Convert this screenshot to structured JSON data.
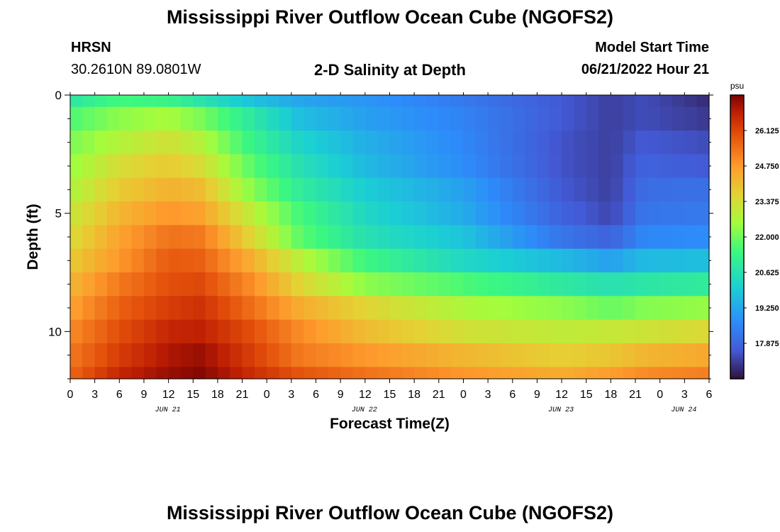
{
  "header": {
    "title": "Mississippi River Outflow Ocean Cube (NGOFS2)",
    "station": "HRSN",
    "coords": "30.2610N  89.0801W",
    "subtitle": "2-D Salinity at Depth",
    "model_start_label": "Model Start Time",
    "model_start_value": "06/21/2022 Hour 21"
  },
  "footer": {
    "title": "Mississippi River Outflow Ocean Cube (NGOFS2)"
  },
  "chart_data": {
    "type": "heatmap",
    "xlabel": "Forecast Time(Z)",
    "ylabel": "Depth (ft)",
    "x_ticks": [
      "0",
      "3",
      "6",
      "9",
      "12",
      "15",
      "18",
      "21",
      "0",
      "3",
      "6",
      "9",
      "12",
      "15",
      "18",
      "21",
      "0",
      "3",
      "6",
      "9",
      "12",
      "15",
      "18",
      "21",
      "0",
      "3",
      "6"
    ],
    "date_labels": [
      {
        "label": "JUN 21",
        "hour": 12
      },
      {
        "label": "JUN 22",
        "hour": 36
      },
      {
        "label": "JUN 23",
        "hour": 60
      },
      {
        "label": "JUN 24",
        "hour": 75
      }
    ],
    "xlim_hours": [
      0,
      78
    ],
    "ylim": [
      0,
      12
    ],
    "y_ticks": [
      0,
      5,
      10
    ],
    "colorbar": {
      "unit": "psu",
      "min": 16.5,
      "max": 27.5,
      "ticks": [
        26.125,
        24.75,
        23.375,
        22.0,
        20.625,
        19.25,
        17.875
      ]
    },
    "x_hours": [
      0,
      6,
      12,
      16,
      22,
      28,
      36,
      48,
      60,
      66,
      70,
      78
    ],
    "depth_layers": [
      0,
      1,
      2,
      3,
      4,
      5,
      6,
      7,
      8,
      9,
      10,
      11,
      12
    ],
    "values": [
      [
        20.8,
        21.5,
        21.3,
        20.7,
        19.8,
        19.2,
        18.9,
        18.3,
        17.6,
        17.2,
        17.4,
        16.9
      ],
      [
        21.6,
        22.3,
        22.6,
        22.1,
        20.9,
        19.7,
        19.1,
        18.5,
        17.6,
        17.2,
        17.4,
        17.1
      ],
      [
        22.1,
        22.8,
        23.3,
        22.8,
        21.3,
        20.2,
        19.4,
        18.6,
        17.5,
        17.2,
        17.6,
        17.4
      ],
      [
        22.4,
        23.4,
        23.8,
        23.4,
        21.8,
        20.6,
        19.6,
        18.7,
        17.5,
        17.2,
        17.8,
        17.6
      ],
      [
        22.7,
        23.8,
        24.3,
        24.1,
        22.3,
        21.0,
        20.0,
        19.1,
        17.6,
        17.2,
        18.0,
        18.1
      ],
      [
        23.1,
        24.2,
        24.8,
        24.6,
        23.0,
        21.5,
        20.3,
        19.3,
        17.8,
        17.3,
        18.2,
        18.3
      ],
      [
        23.4,
        24.6,
        25.4,
        25.3,
        23.6,
        21.8,
        20.6,
        19.8,
        18.2,
        17.8,
        18.6,
        18.7
      ],
      [
        23.8,
        24.8,
        25.8,
        25.7,
        24.4,
        22.9,
        21.4,
        20.3,
        19.6,
        19.1,
        19.6,
        19.7
      ],
      [
        24.2,
        25.3,
        26.0,
        26.1,
        25.0,
        23.6,
        22.3,
        21.6,
        20.9,
        20.6,
        20.8,
        21.0
      ],
      [
        24.6,
        25.7,
        26.3,
        26.5,
        25.5,
        24.4,
        23.6,
        22.7,
        22.3,
        21.9,
        22.2,
        22.4
      ],
      [
        25.0,
        26.0,
        26.7,
        26.8,
        26.0,
        25.0,
        24.1,
        23.3,
        23.0,
        23.1,
        23.2,
        23.5
      ],
      [
        25.3,
        26.3,
        27.0,
        27.2,
        26.3,
        25.3,
        24.8,
        24.2,
        23.7,
        23.9,
        24.2,
        24.5
      ],
      [
        25.6,
        26.7,
        27.2,
        27.4,
        26.6,
        25.9,
        25.4,
        24.8,
        24.4,
        24.7,
        25.0,
        25.2
      ]
    ],
    "colors": {
      "text": "#000000",
      "frame": "#000000"
    }
  }
}
